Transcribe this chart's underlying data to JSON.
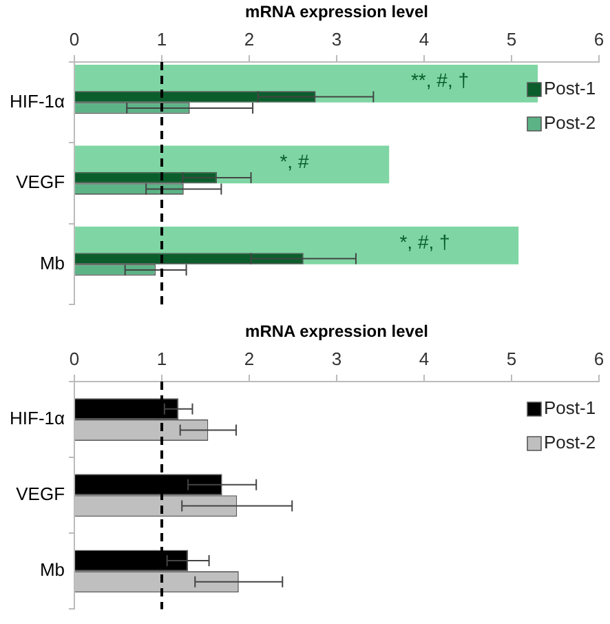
{
  "chart_data": [
    {
      "type": "bar",
      "orientation": "horizontal",
      "xlabel": "mRNA expression level",
      "categories": [
        "HIF-1α",
        "VEGF",
        "Mb"
      ],
      "series": [
        {
          "color": "#7fd6a4",
          "values": [
            5.3,
            3.6,
            5.08
          ]
        },
        {
          "name": "Post-1",
          "color": "#0b5e2c",
          "values": [
            2.76,
            1.63,
            2.62
          ],
          "errors": [
            0.66,
            0.39,
            0.6
          ]
        },
        {
          "name": "Post-2",
          "color": "#5cb386",
          "values": [
            1.32,
            1.25,
            0.93
          ],
          "errors": [
            0.72,
            0.43,
            0.35
          ]
        }
      ],
      "xlim": [
        0,
        6
      ],
      "xticks": [
        0,
        1,
        2,
        3,
        4,
        5,
        6
      ],
      "grid": false,
      "legend": "right",
      "ref_lines": [
        {
          "axis": "x",
          "value": 1,
          "color": "#000000",
          "line_style": "dashed"
        }
      ],
      "annotations": [
        {
          "text": "**, #, †",
          "x": 3.85,
          "y": "HIF-1α"
        },
        {
          "text": "*, #",
          "x": 2.35,
          "y": "VEGF"
        },
        {
          "text": "*, #, †",
          "x": 3.72,
          "y": "Mb"
        }
      ]
    },
    {
      "type": "bar",
      "orientation": "horizontal",
      "xlabel": "mRNA expression level",
      "categories": [
        "HIF-1α",
        "VEGF",
        "Mb"
      ],
      "series": [
        {
          "name": "Post-1",
          "color": "#000000",
          "values": [
            1.19,
            1.69,
            1.3
          ],
          "errors": [
            0.16,
            0.39,
            0.24
          ]
        },
        {
          "name": "Post-2",
          "color": "#bfbfbf",
          "values": [
            1.53,
            1.86,
            1.88
          ],
          "errors": [
            0.32,
            0.63,
            0.5
          ]
        }
      ],
      "xlim": [
        0,
        6
      ],
      "xticks": [
        0,
        1,
        2,
        3,
        4,
        5,
        6
      ],
      "grid": false,
      "legend": "right",
      "ref_lines": [
        {
          "axis": "x",
          "value": 1,
          "color": "#000000",
          "line_style": "dashed"
        }
      ]
    }
  ]
}
